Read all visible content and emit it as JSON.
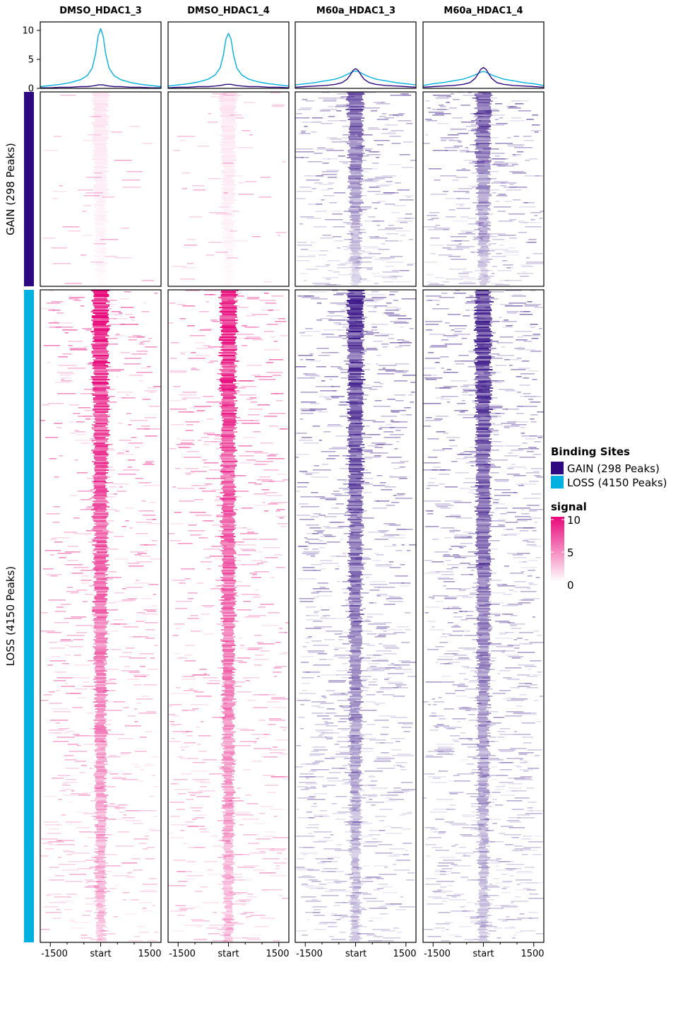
{
  "chart_data": {
    "type": "heatmap",
    "panels": [
      "DMSO_HDAC1_3",
      "DMSO_HDAC1_4",
      "M60a_HDAC1_3",
      "M60a_HDAC1_4"
    ],
    "panel_colors": [
      "#e8087a",
      "#e8087a",
      "#2e0880",
      "#2e0880"
    ],
    "x_ticks": [
      "-1500",
      "start",
      "1500"
    ],
    "x_range": [
      -1800,
      1800
    ],
    "profile": {
      "y_ticks": [
        "0",
        "5",
        "10"
      ],
      "ylim": [
        0,
        11
      ],
      "x": [
        -1800,
        -1500,
        -1200,
        -900,
        -600,
        -400,
        -250,
        -150,
        -75,
        0,
        75,
        150,
        250,
        400,
        600,
        900,
        1200,
        1500,
        1800
      ],
      "series_colors": {
        "LOSS": "#00b0e0",
        "GAIN": "#2e0880"
      },
      "series": [
        {
          "panel": "DMSO_HDAC1_3",
          "LOSS": [
            0.3,
            0.5,
            0.7,
            1.0,
            1.5,
            2.2,
            3.5,
            6.0,
            9.0,
            10.3,
            9.0,
            6.0,
            3.5,
            2.2,
            1.5,
            1.0,
            0.7,
            0.5,
            0.3
          ],
          "GAIN": [
            0.1,
            0.1,
            0.2,
            0.2,
            0.3,
            0.3,
            0.4,
            0.5,
            0.6,
            0.6,
            0.6,
            0.5,
            0.4,
            0.3,
            0.3,
            0.2,
            0.2,
            0.1,
            0.1
          ]
        },
        {
          "panel": "DMSO_HDAC1_4",
          "LOSS": [
            0.4,
            0.6,
            0.8,
            1.1,
            1.6,
            2.3,
            3.5,
            5.8,
            8.5,
            9.5,
            8.5,
            5.8,
            3.5,
            2.3,
            1.6,
            1.1,
            0.8,
            0.6,
            0.4
          ],
          "GAIN": [
            0.1,
            0.2,
            0.2,
            0.3,
            0.3,
            0.4,
            0.5,
            0.6,
            0.7,
            0.7,
            0.7,
            0.6,
            0.5,
            0.4,
            0.3,
            0.3,
            0.2,
            0.2,
            0.1
          ]
        },
        {
          "panel": "M60a_HDAC1_3",
          "LOSS": [
            0.6,
            0.8,
            1.0,
            1.3,
            1.6,
            2.0,
            2.4,
            2.7,
            2.9,
            3.0,
            2.9,
            2.7,
            2.4,
            2.0,
            1.6,
            1.3,
            1.0,
            0.8,
            0.6
          ],
          "GAIN": [
            0.2,
            0.3,
            0.4,
            0.5,
            0.7,
            1.0,
            1.6,
            2.4,
            3.1,
            3.4,
            3.1,
            2.4,
            1.6,
            1.0,
            0.7,
            0.5,
            0.4,
            0.3,
            0.2
          ]
        },
        {
          "panel": "M60a_HDAC1_4",
          "LOSS": [
            0.5,
            0.8,
            1.0,
            1.3,
            1.6,
            2.0,
            2.3,
            2.6,
            2.8,
            2.9,
            2.8,
            2.6,
            2.3,
            2.0,
            1.6,
            1.3,
            1.0,
            0.8,
            0.5
          ],
          "GAIN": [
            0.2,
            0.3,
            0.4,
            0.5,
            0.7,
            1.0,
            1.7,
            2.6,
            3.3,
            3.6,
            3.3,
            2.6,
            1.7,
            1.0,
            0.7,
            0.5,
            0.4,
            0.3,
            0.2
          ]
        }
      ]
    },
    "groups": [
      {
        "label": "GAIN (298 Peaks)",
        "peaks": 298,
        "color": "#2e0880"
      },
      {
        "label": "LOSS (4150 Peaks)",
        "peaks": 4150,
        "color": "#00b0e0"
      }
    ],
    "legend": {
      "binding_title": "Binding Sites",
      "binding_items": [
        {
          "label": "GAIN (298 Peaks)",
          "color": "#2e0880"
        },
        {
          "label": "LOSS (4150 Peaks)",
          "color": "#00b0e0"
        }
      ],
      "signal_title": "signal",
      "signal_ticks": [
        "10",
        "5",
        "0"
      ],
      "signal_range": [
        0,
        10
      ],
      "signal_color": "#e8087a"
    }
  }
}
